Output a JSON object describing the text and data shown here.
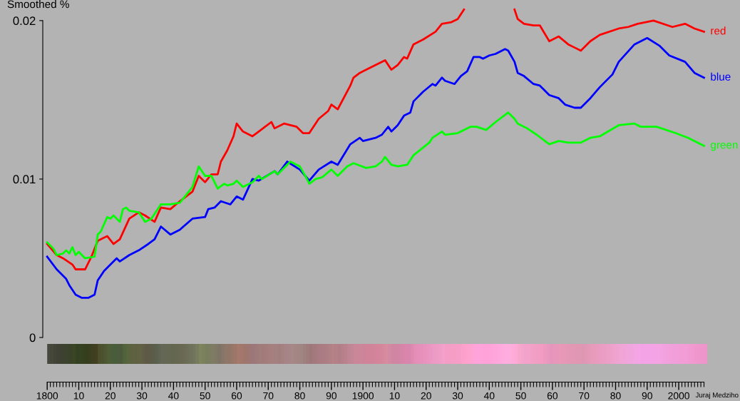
{
  "chart_data": {
    "type": "line",
    "ylabel": "Smoothed %",
    "legend": false,
    "marker": "none",
    "line_style": "solid",
    "xlim": [
      1798.6,
      2019.4
    ],
    "ylim": [
      0,
      0.0213
    ],
    "yticks": [
      {
        "value": 0,
        "label": "0"
      },
      {
        "value": 0.01,
        "label": "0.01"
      },
      {
        "value": 0.02,
        "label": "0.02"
      }
    ],
    "xticks": [
      {
        "value": 1800,
        "label": "1800"
      },
      {
        "value": 1810,
        "label": "10"
      },
      {
        "value": 1820,
        "label": "20"
      },
      {
        "value": 1830,
        "label": "30"
      },
      {
        "value": 1840,
        "label": "40"
      },
      {
        "value": 1850,
        "label": "50"
      },
      {
        "value": 1860,
        "label": "60"
      },
      {
        "value": 1870,
        "label": "70"
      },
      {
        "value": 1880,
        "label": "80"
      },
      {
        "value": 1890,
        "label": "90"
      },
      {
        "value": 1900,
        "label": "1900"
      },
      {
        "value": 1910,
        "label": "10"
      },
      {
        "value": 1920,
        "label": "20"
      },
      {
        "value": 1930,
        "label": "30"
      },
      {
        "value": 1940,
        "label": "40"
      },
      {
        "value": 1950,
        "label": "50"
      },
      {
        "value": 1960,
        "label": "60"
      },
      {
        "value": 1970,
        "label": "70"
      },
      {
        "value": 1980,
        "label": "80"
      },
      {
        "value": 1990,
        "label": "90"
      },
      {
        "value": 2000,
        "label": "2000"
      }
    ],
    "series": [
      {
        "name": "red",
        "color": "#ff0000",
        "x": [
          1800,
          1803,
          1805,
          1808,
          1809,
          1812,
          1814,
          1816,
          1819,
          1821,
          1823,
          1826,
          1829,
          1831,
          1834,
          1836,
          1839,
          1842,
          1846,
          1848,
          1850,
          1852,
          1854,
          1855,
          1857,
          1859,
          1860,
          1862,
          1865,
          1867,
          1869,
          1871,
          1872,
          1875,
          1879,
          1881,
          1883,
          1886,
          1889,
          1890,
          1892,
          1896,
          1897,
          1899,
          1902,
          1907,
          1909,
          1911,
          1913,
          1914,
          1916,
          1919,
          1923,
          1925,
          1928,
          1930,
          1932,
          1934,
          1936,
          1938,
          1940,
          1942,
          1944,
          1946,
          1948,
          1949,
          1951,
          1954,
          1956,
          1959,
          1962,
          1965,
          1967,
          1969,
          1972,
          1975,
          1981,
          1984,
          1987,
          1992,
          1998,
          2002,
          2005,
          2008
        ],
        "values": [
          0.0059,
          0.0052,
          0.005,
          0.0046,
          0.0043,
          0.0043,
          0.0051,
          0.0061,
          0.0064,
          0.0059,
          0.0062,
          0.0075,
          0.0079,
          0.0077,
          0.0073,
          0.0082,
          0.0081,
          0.0086,
          0.0092,
          0.0102,
          0.0098,
          0.0103,
          0.0103,
          0.0111,
          0.0118,
          0.0127,
          0.0135,
          0.013,
          0.0127,
          0.013,
          0.0133,
          0.0136,
          0.0132,
          0.0135,
          0.0133,
          0.0129,
          0.0129,
          0.0138,
          0.0143,
          0.0147,
          0.0144,
          0.0159,
          0.0164,
          0.0167,
          0.017,
          0.0175,
          0.0169,
          0.0172,
          0.0177,
          0.0176,
          0.0185,
          0.0188,
          0.0193,
          0.0198,
          0.0199,
          0.0201,
          0.0207,
          null,
          null,
          null,
          null,
          null,
          null,
          null,
          0.0207,
          0.0201,
          0.0198,
          0.0197,
          0.0197,
          0.0187,
          0.019,
          0.0185,
          0.0183,
          0.0181,
          0.0187,
          0.0191,
          0.0195,
          0.0196,
          0.0198,
          0.02,
          0.0196,
          0.0198,
          0.0195,
          0.0193
        ]
      },
      {
        "name": "blue",
        "color": "#0000ff",
        "x": [
          1800,
          1803,
          1806,
          1807,
          1809,
          1811,
          1813,
          1815,
          1816,
          1818,
          1822,
          1823,
          1826,
          1829,
          1832,
          1834,
          1836,
          1839,
          1842,
          1846,
          1850,
          1851,
          1853,
          1855,
          1858,
          1860,
          1862,
          1865,
          1867,
          1872,
          1873,
          1876,
          1880,
          1883,
          1886,
          1890,
          1892,
          1896,
          1899,
          1900,
          1904,
          1906,
          1908,
          1909,
          1911,
          1913,
          1915,
          1916,
          1919,
          1922,
          1923,
          1925,
          1926,
          1929,
          1931,
          1933,
          1935,
          1937,
          1938,
          1940,
          1942,
          1945,
          1946,
          1948,
          1949,
          1951,
          1954,
          1956,
          1959,
          1962,
          1964,
          1967,
          1969,
          1972,
          1975,
          1979,
          1981,
          1986,
          1990,
          1994,
          1997,
          2002,
          2005,
          2008
        ],
        "values": [
          0.0051,
          0.0043,
          0.0037,
          0.0033,
          0.0027,
          0.0025,
          0.0025,
          0.0027,
          0.0036,
          0.0042,
          0.005,
          0.0048,
          0.0052,
          0.0055,
          0.0059,
          0.0062,
          0.007,
          0.0065,
          0.0068,
          0.0075,
          0.0076,
          0.0081,
          0.0082,
          0.0086,
          0.0084,
          0.0089,
          0.0087,
          0.01,
          0.0099,
          0.0105,
          0.0103,
          0.0111,
          0.0106,
          0.0099,
          0.0106,
          0.0111,
          0.0109,
          0.0122,
          0.0126,
          0.0124,
          0.0126,
          0.0128,
          0.0133,
          0.013,
          0.0134,
          0.014,
          0.0142,
          0.0149,
          0.0155,
          0.016,
          0.0159,
          0.0164,
          0.0162,
          0.016,
          0.0165,
          0.0168,
          0.0177,
          0.0177,
          0.0176,
          0.0178,
          0.0179,
          0.0182,
          0.0181,
          0.0174,
          0.0167,
          0.0165,
          0.016,
          0.0159,
          0.0153,
          0.0151,
          0.0147,
          0.0145,
          0.0145,
          0.0151,
          0.0158,
          0.0166,
          0.0174,
          0.0185,
          0.0189,
          0.0184,
          0.0178,
          0.0174,
          0.0167,
          0.0164
        ]
      },
      {
        "name": "green",
        "color": "#00ff00",
        "x": [
          1800,
          1802,
          1803,
          1805,
          1806,
          1807,
          1808,
          1809,
          1810,
          1812,
          1815,
          1816,
          1817,
          1819,
          1820,
          1821,
          1823,
          1824,
          1825,
          1826,
          1829,
          1831,
          1833,
          1836,
          1839,
          1842,
          1846,
          1848,
          1850,
          1852,
          1854,
          1856,
          1857,
          1859,
          1860,
          1862,
          1865,
          1867,
          1868,
          1872,
          1873,
          1877,
          1880,
          1882,
          1883,
          1885,
          1887,
          1890,
          1892,
          1895,
          1897,
          1901,
          1904,
          1906,
          1907,
          1909,
          1911,
          1914,
          1916,
          1921,
          1922,
          1925,
          1926,
          1930,
          1934,
          1936,
          1939,
          1942,
          1946,
          1948,
          1949,
          1952,
          1955,
          1959,
          1962,
          1965,
          1969,
          1972,
          1975,
          1981,
          1986,
          1988,
          1993,
          1999,
          2003,
          2008
        ],
        "values": [
          0.006,
          0.0056,
          0.0052,
          0.0053,
          0.0055,
          0.0053,
          0.0057,
          0.0052,
          0.0054,
          0.005,
          0.0051,
          0.0065,
          0.0067,
          0.0076,
          0.0075,
          0.0077,
          0.0073,
          0.0081,
          0.0082,
          0.008,
          0.0079,
          0.0073,
          0.0075,
          0.0084,
          0.0084,
          0.0085,
          0.0095,
          0.0108,
          0.0102,
          0.0102,
          0.0094,
          0.0097,
          0.0096,
          0.0097,
          0.0099,
          0.0095,
          0.0098,
          0.0102,
          0.01,
          0.0105,
          0.0103,
          0.0111,
          0.0108,
          0.0101,
          0.0097,
          0.01,
          0.0101,
          0.0106,
          0.0102,
          0.0108,
          0.011,
          0.0107,
          0.0108,
          0.0111,
          0.0114,
          0.0109,
          0.0108,
          0.0109,
          0.0115,
          0.0123,
          0.0126,
          0.013,
          0.0128,
          0.0129,
          0.0133,
          0.0133,
          0.0131,
          0.0136,
          0.0142,
          0.0138,
          0.0135,
          0.0132,
          0.0128,
          0.0122,
          0.0124,
          0.0123,
          0.0123,
          0.0126,
          0.0127,
          0.0134,
          0.0135,
          0.0133,
          0.0133,
          0.0129,
          0.0126,
          0.0121
        ]
      }
    ],
    "annotations": [
      "Juraj Medziho"
    ]
  }
}
